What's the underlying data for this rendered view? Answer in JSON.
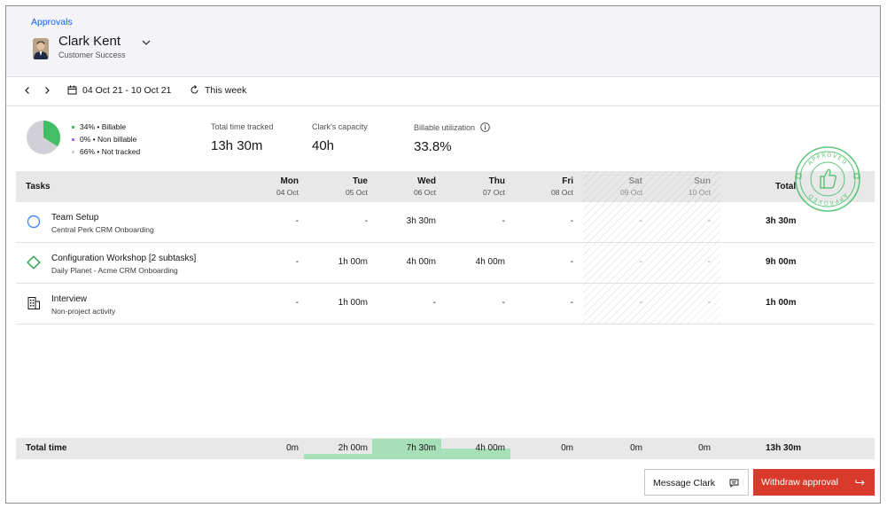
{
  "header": {
    "breadcrumb": "Approvals",
    "user_name": "Clark Kent",
    "user_role": "Customer Success"
  },
  "datebar": {
    "range": "04 Oct 21 - 10 Oct 21",
    "this_week": "This week"
  },
  "summary": {
    "legend": [
      {
        "text": "34% • Billable",
        "color": "#42be65"
      },
      {
        "text": "0% • Non billable",
        "color": "#a56eff"
      },
      {
        "text": "66% • Not tracked",
        "color": "#d0d0d6"
      }
    ],
    "pie_billable_fraction": 0.34,
    "total_tracked_label": "Total time tracked",
    "total_tracked_value": "13h 30m",
    "capacity_label": "Clark's capacity",
    "capacity_value": "40h",
    "utilization_label": "Billable utilization",
    "utilization_value": "33.8%"
  },
  "table": {
    "tasks_header": "Tasks",
    "total_header": "Total",
    "days": [
      {
        "day": "Mon",
        "date": "04 Oct"
      },
      {
        "day": "Tue",
        "date": "05 Oct"
      },
      {
        "day": "Wed",
        "date": "06 Oct"
      },
      {
        "day": "Thu",
        "date": "07 Oct"
      },
      {
        "day": "Fri",
        "date": "08 Oct"
      },
      {
        "day": "Sat",
        "date": "09 Oct"
      },
      {
        "day": "Sun",
        "date": "10 Oct"
      }
    ],
    "rows": [
      {
        "name": "Team Setup",
        "sub": "Central Perk CRM Onboarding",
        "icon": "circle-outline-icon",
        "cells": [
          "-",
          "-",
          "3h 30m",
          "-",
          "-",
          "-",
          "-"
        ],
        "total": "3h 30m"
      },
      {
        "name": "Configuration Workshop [2 subtasks]",
        "sub": "Daily Planet - Acme CRM Onboarding",
        "icon": "diamond-outline-icon",
        "cells": [
          "-",
          "1h 00m",
          "4h 00m",
          "4h 00m",
          "-",
          "-",
          "-"
        ],
        "total": "9h 00m"
      },
      {
        "name": "Interview",
        "sub": "Non-project activity",
        "icon": "building-icon",
        "cells": [
          "-",
          "1h 00m",
          "-",
          "-",
          "-",
          "-",
          "-"
        ],
        "total": "1h 00m"
      }
    ],
    "total_row": {
      "label": "Total time",
      "cells": [
        "0m",
        "2h 00m",
        "7h 30m",
        "4h 00m",
        "0m",
        "0m",
        "0m"
      ],
      "total": "13h 30m"
    }
  },
  "stamp": {
    "text": "APPROVED"
  },
  "buttons": {
    "message": "Message Clark",
    "withdraw": "Withdraw approval"
  }
}
